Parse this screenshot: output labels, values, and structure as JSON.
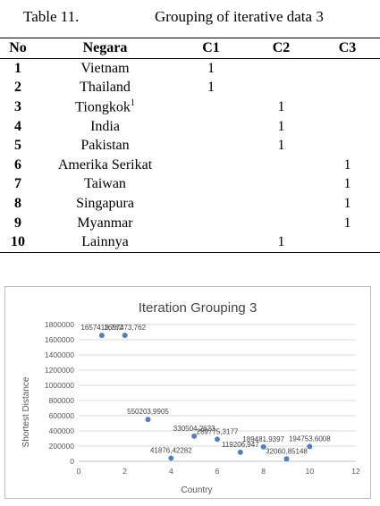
{
  "caption": {
    "number": "Table 11.",
    "title": "Grouping of iterative data 3"
  },
  "table": {
    "headers": [
      "No",
      "Negara",
      "C1",
      "C2",
      "C3"
    ],
    "rows": [
      {
        "no": "1",
        "negara": "Vietnam",
        "c1": "1",
        "c2": "",
        "c3": ""
      },
      {
        "no": "2",
        "negara": "Thailand",
        "c1": "1",
        "c2": "",
        "c3": ""
      },
      {
        "no": "3",
        "negara": "Tiongkok",
        "sup": "1",
        "c1": "",
        "c2": "1",
        "c3": ""
      },
      {
        "no": "4",
        "negara": "India",
        "c1": "",
        "c2": "1",
        "c3": ""
      },
      {
        "no": "5",
        "negara": "Pakistan",
        "c1": "",
        "c2": "1",
        "c3": ""
      },
      {
        "no": "6",
        "negara": "Amerika Serikat",
        "c1": "",
        "c2": "",
        "c3": "1"
      },
      {
        "no": "7",
        "negara": "Taiwan",
        "c1": "",
        "c2": "",
        "c3": "1"
      },
      {
        "no": "8",
        "negara": "Singapura",
        "c1": "",
        "c2": "",
        "c3": "1"
      },
      {
        "no": "9",
        "negara": "Myanmar",
        "c1": "",
        "c2": "",
        "c3": "1"
      },
      {
        "no": "10",
        "negara": "Lainnya",
        "c1": "",
        "c2": "1",
        "c3": ""
      }
    ]
  },
  "chart_data": {
    "type": "scatter",
    "title": "Iteration Grouping 3",
    "xlabel": "Country",
    "ylabel": "Shortest Distance",
    "xlim": [
      0,
      12
    ],
    "ylim": [
      0,
      1800000
    ],
    "xticks": [
      "0",
      "2",
      "4",
      "6",
      "8",
      "10",
      "12"
    ],
    "yticks": [
      "0",
      "200000",
      "400000",
      "600000",
      "800000",
      "1000000",
      "1200000",
      "1400000",
      "1600000",
      "1800000"
    ],
    "grid": true,
    "color": "#4f81bd",
    "points": [
      {
        "x": 1,
        "y": 1657413.762,
        "label": "1657413,762"
      },
      {
        "x": 2,
        "y": 1657473.762,
        "label": "1657473,762"
      },
      {
        "x": 3,
        "y": 550203.9905,
        "label": "550203,9905"
      },
      {
        "x": 4,
        "y": 41876.42282,
        "label": "41876,42282"
      },
      {
        "x": 5,
        "y": 330504.2623,
        "label": "330504,2623"
      },
      {
        "x": 6,
        "y": 289775.3177,
        "label": "289775,3177"
      },
      {
        "x": 7,
        "y": 119206.947,
        "label": "119206,947"
      },
      {
        "x": 8,
        "y": 189481.9397,
        "label": "189481,9397"
      },
      {
        "x": 9,
        "y": 32060.85148,
        "label": "32060,85148"
      },
      {
        "x": 10,
        "y": 194753.6008,
        "label": "194753,6008"
      }
    ]
  }
}
